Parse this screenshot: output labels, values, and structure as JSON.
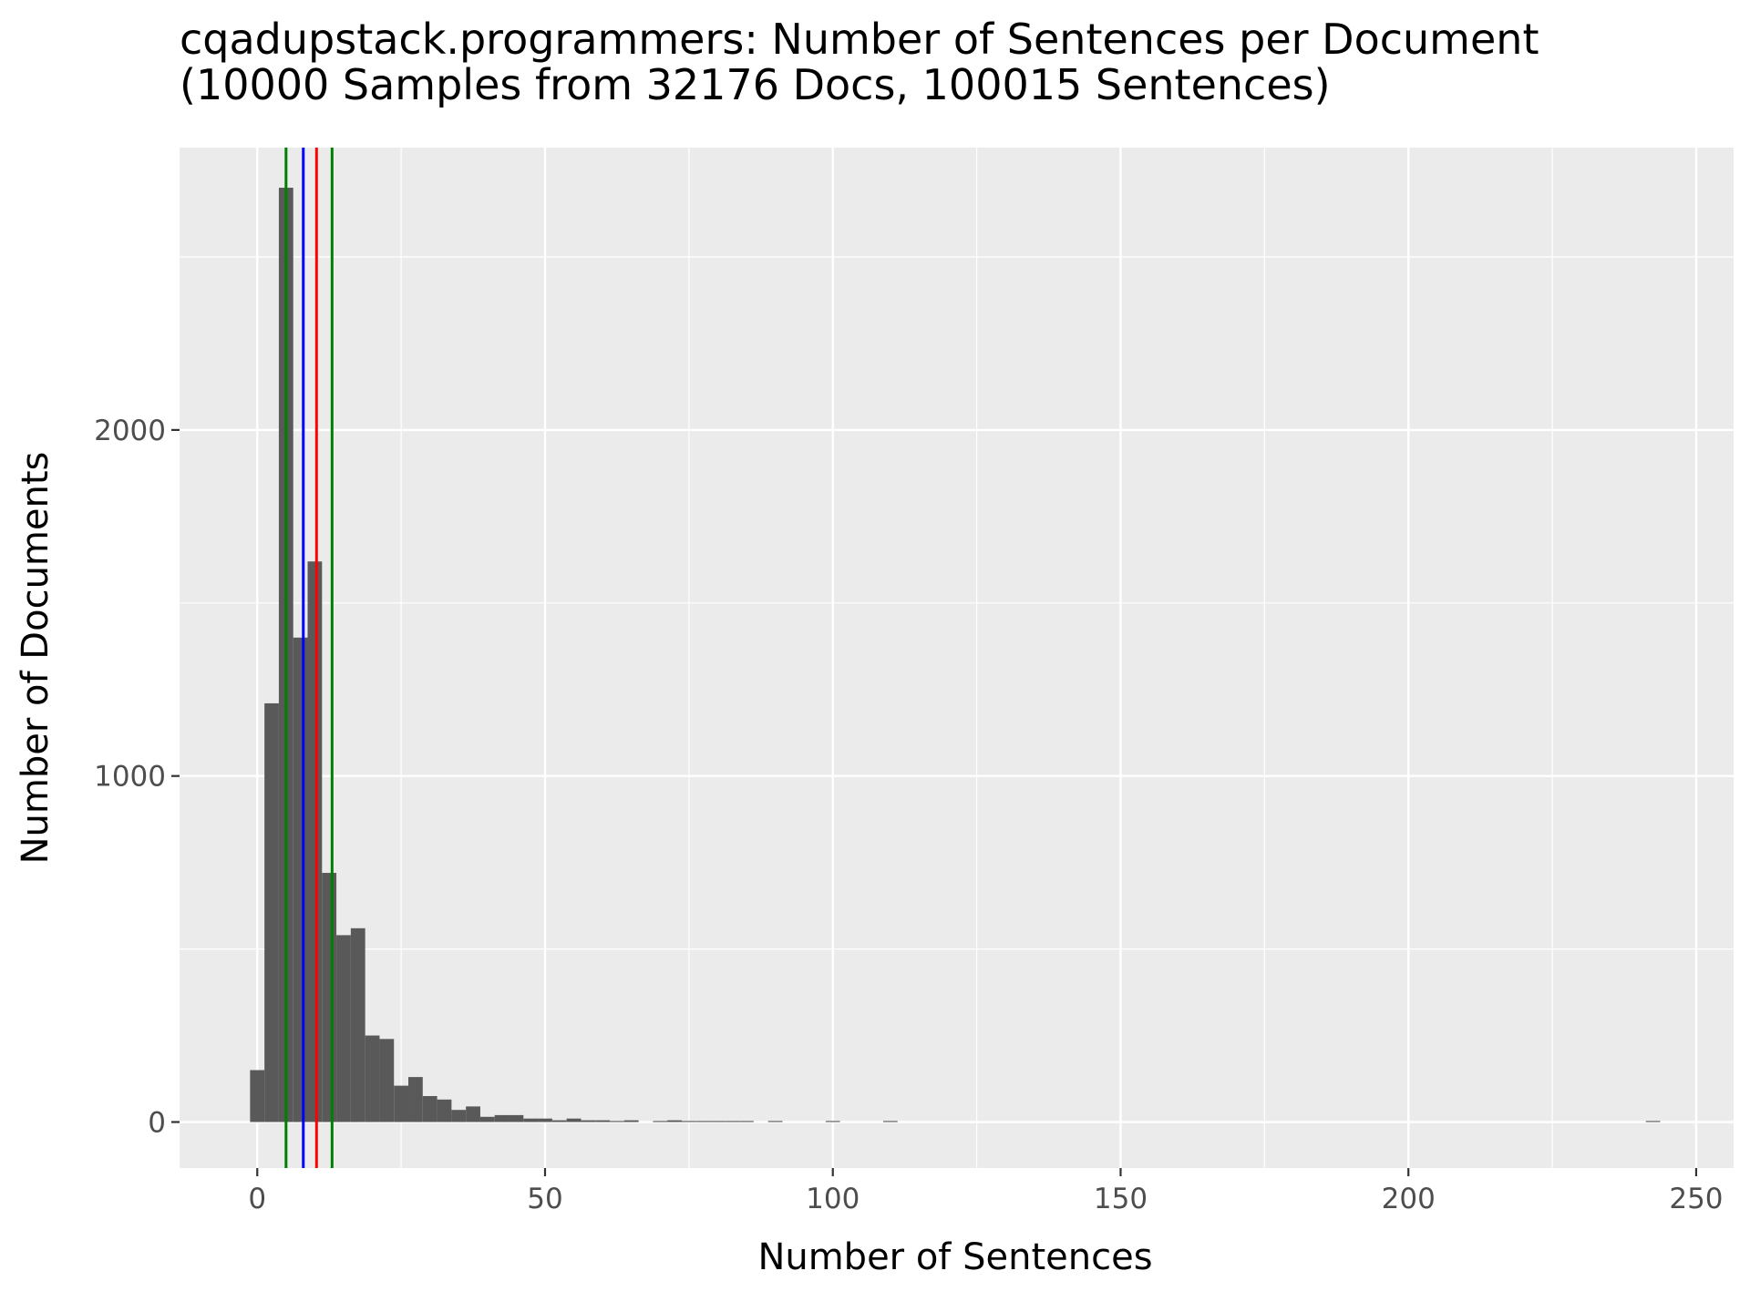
{
  "chart_data": {
    "type": "bar",
    "title": "cqadupstack.programmers: Number of Sentences per Document",
    "subtitle": "(10000 Samples from 32176 Docs, 100015 Sentences)",
    "xlabel": "Number of Sentences",
    "ylabel": "Number of Documents",
    "xlim": [
      -13.5,
      256.5
    ],
    "ylim": [
      -133,
      2816
    ],
    "x_ticks": [
      0,
      50,
      100,
      150,
      200,
      250
    ],
    "x_tick_labels": [
      "0",
      "50",
      "100",
      "150",
      "200",
      "250"
    ],
    "y_ticks": [
      0,
      1000,
      2000
    ],
    "y_tick_labels": [
      "0",
      "1000",
      "2000"
    ],
    "grid": true,
    "bin_width": 2.5,
    "bins_x": [
      0,
      2.5,
      5,
      7.5,
      10,
      12.5,
      15,
      17.5,
      20,
      22.5,
      25,
      27.5,
      30,
      32.5,
      35,
      37.5,
      40,
      42.5,
      45,
      47.5,
      50,
      52.5,
      55,
      57.5,
      60,
      62.5,
      65,
      70,
      72.5,
      75,
      77.5,
      80,
      82.5,
      85,
      90,
      100,
      110,
      242.5
    ],
    "bins_count": [
      150,
      1210,
      2700,
      1400,
      1620,
      720,
      540,
      560,
      250,
      240,
      105,
      130,
      75,
      65,
      35,
      45,
      15,
      20,
      20,
      10,
      10,
      5,
      10,
      5,
      5,
      3,
      5,
      3,
      5,
      3,
      3,
      3,
      3,
      3,
      3,
      3,
      3,
      3
    ],
    "vlines": [
      {
        "x": 5,
        "color": "#008000"
      },
      {
        "x": 8,
        "color": "#0000ff"
      },
      {
        "x": 10.3,
        "color": "#ff0000"
      },
      {
        "x": 13,
        "color": "#008000"
      }
    ],
    "colors": {
      "panel": "#ebebeb",
      "grid_major": "#ffffff",
      "bar": "#595959",
      "tick_label": "#4d4d4d",
      "tick": "#333333"
    }
  }
}
